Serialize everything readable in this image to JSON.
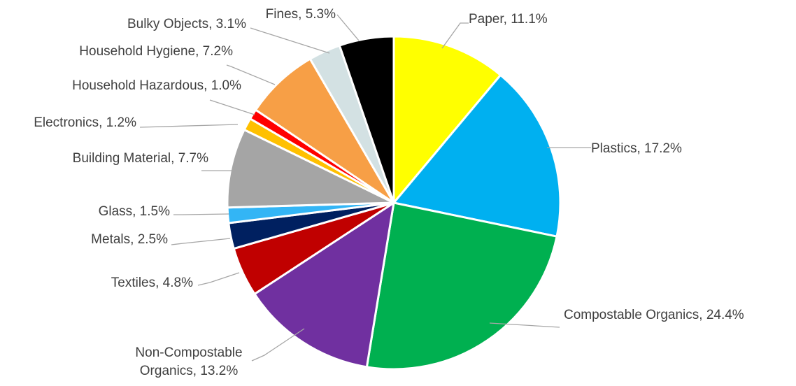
{
  "chart_data": {
    "type": "pie",
    "title": "",
    "start_angle_deg": 0,
    "direction": "clockwise",
    "slices": [
      {
        "label": "Paper",
        "value": 11.1,
        "value_label": "11.1%",
        "color": "#ffff00"
      },
      {
        "label": "Plastics",
        "value": 17.2,
        "value_label": "17.2%",
        "color": "#00b0f0"
      },
      {
        "label": "Compostable Organics",
        "value": 24.4,
        "value_label": "24.4%",
        "color": "#00b050"
      },
      {
        "label": "Non-Compostable Organics",
        "value": 13.2,
        "value_label": "13.2%",
        "color": "#7030a0",
        "label_lines": [
          "Non-Compostable",
          "Organics, 13.2%"
        ]
      },
      {
        "label": "Textiles",
        "value": 4.8,
        "value_label": "4.8%",
        "color": "#c00000"
      },
      {
        "label": "Metals",
        "value": 2.5,
        "value_label": "2.5%",
        "color": "#002060"
      },
      {
        "label": "Glass",
        "value": 1.5,
        "value_label": "1.5%",
        "color": "#33b5f5"
      },
      {
        "label": "Building Material",
        "value": 7.7,
        "value_label": "7.7%",
        "color": "#a5a5a5"
      },
      {
        "label": "Electronics",
        "value": 1.2,
        "value_label": "1.2%",
        "color": "#ffc000"
      },
      {
        "label": "Household Hazardous",
        "value": 1.0,
        "value_label": "1.0%",
        "color": "#ff0000"
      },
      {
        "label": "Household Hygiene",
        "value": 7.2,
        "value_label": "7.2%",
        "color": "#f79f46"
      },
      {
        "label": "Bulky Objects",
        "value": 3.1,
        "value_label": "3.1%",
        "color": "#d3e1e3"
      },
      {
        "label": "Fines",
        "value": 5.3,
        "value_label": "5.3%",
        "color": "#000000"
      }
    ]
  }
}
